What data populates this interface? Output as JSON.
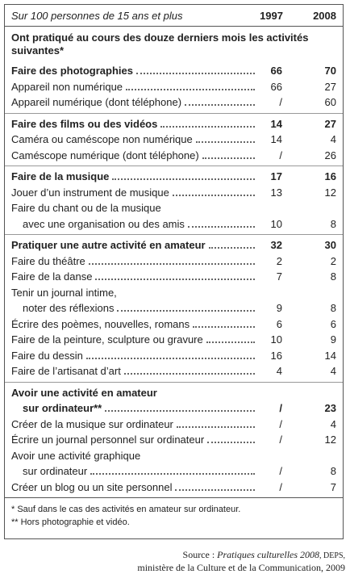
{
  "header": {
    "caption": "Sur 100 personnes de 15 ans et plus",
    "columns": [
      "1997",
      "2008"
    ]
  },
  "intro": "Ont pratiqué au cours des douze derniers mois les activités suivantes*",
  "groups": [
    {
      "rows": [
        {
          "label": [
            "Faire des photographies"
          ],
          "values": [
            66,
            70
          ],
          "bold": true
        },
        {
          "label": [
            "Appareil non numérique"
          ],
          "values": [
            66,
            27
          ]
        },
        {
          "label": [
            "Appareil numérique (dont téléphone)"
          ],
          "values": [
            "/",
            60
          ]
        }
      ]
    },
    {
      "rows": [
        {
          "label": [
            "Faire des films ou des vidéos"
          ],
          "values": [
            14,
            27
          ],
          "bold": true
        },
        {
          "label": [
            "Caméra ou caméscope non numérique"
          ],
          "values": [
            14,
            4
          ]
        },
        {
          "label": [
            "Caméscope numérique (dont téléphone)"
          ],
          "values": [
            "/",
            26
          ]
        }
      ]
    },
    {
      "rows": [
        {
          "label": [
            "Faire de la musique"
          ],
          "values": [
            17,
            16
          ],
          "bold": true
        },
        {
          "label": [
            "Jouer d’un instrument de musique"
          ],
          "values": [
            13,
            12
          ]
        },
        {
          "label": [
            "Faire du chant ou de la musique",
            "avec une organisation ou des amis"
          ],
          "values": [
            10,
            8
          ]
        }
      ]
    },
    {
      "rows": [
        {
          "label": [
            "Pratiquer une autre activité en amateur"
          ],
          "values": [
            32,
            30
          ],
          "bold": true
        },
        {
          "label": [
            "Faire du théâtre"
          ],
          "values": [
            2,
            2
          ]
        },
        {
          "label": [
            "Faire de la danse"
          ],
          "values": [
            7,
            8
          ]
        },
        {
          "label": [
            "Tenir un journal intime,",
            "noter des réflexions"
          ],
          "values": [
            9,
            8
          ]
        },
        {
          "label": [
            "Écrire des poèmes, nouvelles, romans"
          ],
          "values": [
            6,
            6
          ]
        },
        {
          "label": [
            "Faire de la peinture, sculpture ou gravure"
          ],
          "values": [
            10,
            9
          ]
        },
        {
          "label": [
            "Faire du dessin"
          ],
          "values": [
            16,
            14
          ]
        },
        {
          "label": [
            "Faire de l’artisanat d’art"
          ],
          "values": [
            4,
            4
          ]
        }
      ]
    },
    {
      "rows": [
        {
          "label": [
            "Avoir une activité en amateur",
            "sur ordinateur**"
          ],
          "values": [
            "/",
            23
          ],
          "bold": true
        },
        {
          "label": [
            "Créer de la musique sur ordinateur"
          ],
          "values": [
            "/",
            4
          ]
        },
        {
          "label": [
            "Écrire un journal personnel sur ordinateur"
          ],
          "values": [
            "/",
            12
          ]
        },
        {
          "label": [
            "Avoir une activité graphique",
            "sur ordinateur"
          ],
          "values": [
            "/",
            8
          ]
        },
        {
          "label": [
            "Créer un blog ou un site personnel"
          ],
          "values": [
            "/",
            7
          ]
        }
      ]
    }
  ],
  "footnotes": [
    "* Sauf dans le cas des activités en amateur sur ordinateur.",
    "** Hors photographie et vidéo."
  ],
  "source": {
    "label": "Source :",
    "title": "Pratiques culturelles 2008",
    "org": ", DEPS,",
    "line2": "ministère de la Culture et de la Communication, 2009"
  }
}
